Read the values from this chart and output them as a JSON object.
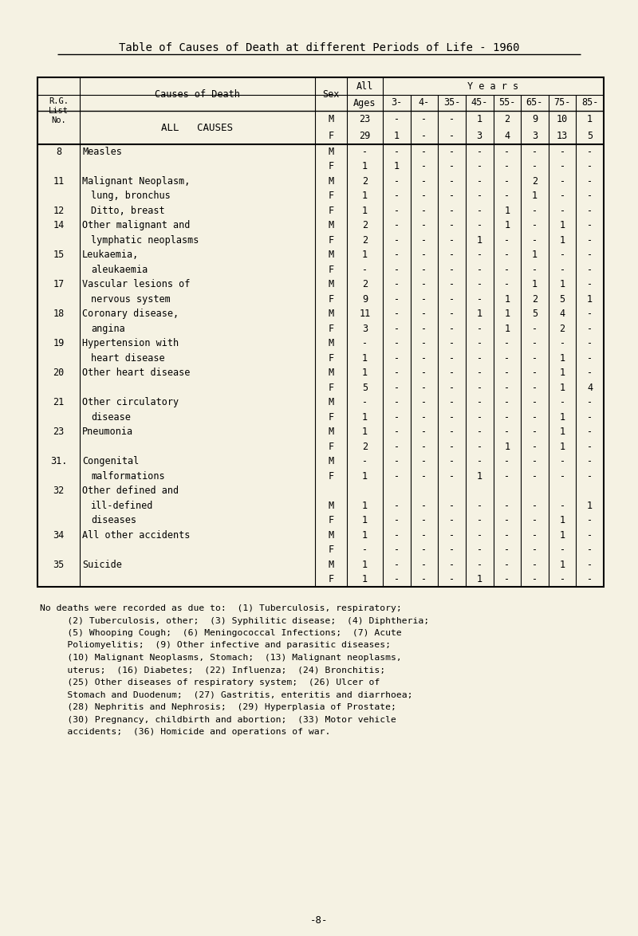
{
  "title": "Table of Causes of Death at different Periods of Life - 1960",
  "bg_color": "#f5f2e3",
  "age_labels": [
    "3-",
    "4-",
    "35-",
    "45-",
    "55-",
    "65-",
    "75-",
    "85-"
  ],
  "rows": [
    {
      "num": "",
      "cause": "ALL CAUSES",
      "sex": "M",
      "all": "23",
      "c3": "-",
      "c4": "-",
      "c35": "-",
      "c45": "1",
      "c55": "2",
      "c65": "9",
      "c75": "10",
      "c85": "1"
    },
    {
      "num": "",
      "cause": "",
      "sex": "F",
      "all": "29",
      "c3": "1",
      "c4": "-",
      "c35": "-",
      "c45": "3",
      "c55": "4",
      "c65": "3",
      "c75": "13",
      "c85": "5"
    },
    {
      "num": "8",
      "cause": "Measles",
      "sex": "M",
      "all": "-",
      "c3": "-",
      "c4": "-",
      "c35": "-",
      "c45": "-",
      "c55": "-",
      "c65": "-",
      "c75": "-",
      "c85": "-"
    },
    {
      "num": "",
      "cause": "",
      "sex": "F",
      "all": "1",
      "c3": "1",
      "c4": "-",
      "c35": "-",
      "c45": "-",
      "c55": "-",
      "c65": "-",
      "c75": "-",
      "c85": "-"
    },
    {
      "num": "11",
      "cause": "Malignant Neoplasm,",
      "sex": "M",
      "all": "2",
      "c3": "-",
      "c4": "-",
      "c35": "-",
      "c45": "-",
      "c55": "-",
      "c65": "2",
      "c75": "-",
      "c85": "-"
    },
    {
      "num": "",
      "cause": "    lung, bronchus",
      "sex": "F",
      "all": "1",
      "c3": "-",
      "c4": "-",
      "c35": "-",
      "c45": "-",
      "c55": "-",
      "c65": "1",
      "c75": "-",
      "c85": "-"
    },
    {
      "num": "12",
      "cause": "    Ditto, breast",
      "sex": "F",
      "all": "1",
      "c3": "-",
      "c4": "-",
      "c35": "-",
      "c45": "-",
      "c55": "1",
      "c65": "-",
      "c75": "-",
      "c85": "-"
    },
    {
      "num": "14",
      "cause": "Other malignant and",
      "sex": "M",
      "all": "2",
      "c3": "-",
      "c4": "-",
      "c35": "-",
      "c45": "-",
      "c55": "1",
      "c65": "-",
      "c75": "1",
      "c85": "-"
    },
    {
      "num": "",
      "cause": "    lymphatic neoplasms",
      "sex": "F",
      "all": "2",
      "c3": "-",
      "c4": "-",
      "c35": "-",
      "c45": "1",
      "c55": "-",
      "c65": "-",
      "c75": "1",
      "c85": "-"
    },
    {
      "num": "15",
      "cause": "Leukaemia,",
      "sex": "M",
      "all": "1",
      "c3": "-",
      "c4": "-",
      "c35": "-",
      "c45": "-",
      "c55": "-",
      "c65": "1",
      "c75": "-",
      "c85": "-"
    },
    {
      "num": "",
      "cause": "    aleukaemia",
      "sex": "F",
      "all": "-",
      "c3": "-",
      "c4": "-",
      "c35": "-",
      "c45": "-",
      "c55": "-",
      "c65": "-",
      "c75": "-",
      "c85": "-"
    },
    {
      "num": "17",
      "cause": "Vascular lesions of",
      "sex": "M",
      "all": "2",
      "c3": "-",
      "c4": "-",
      "c35": "-",
      "c45": "-",
      "c55": "-",
      "c65": "1",
      "c75": "1",
      "c85": "-"
    },
    {
      "num": "",
      "cause": "    nervous system",
      "sex": "F",
      "all": "9",
      "c3": "-",
      "c4": "-",
      "c35": "-",
      "c45": "-",
      "c55": "1",
      "c65": "2",
      "c75": "5",
      "c85": "1"
    },
    {
      "num": "18",
      "cause": "Coronary disease,",
      "sex": "M",
      "all": "11",
      "c3": "-",
      "c4": "-",
      "c35": "-",
      "c45": "1",
      "c55": "1",
      "c65": "5",
      "c75": "4",
      "c85": "-"
    },
    {
      "num": "",
      "cause": "    angina",
      "sex": "F",
      "all": "3",
      "c3": "-",
      "c4": "-",
      "c35": "-",
      "c45": "-",
      "c55": "1",
      "c65": "-",
      "c75": "2",
      "c85": "-"
    },
    {
      "num": "19",
      "cause": "Hypertension with",
      "sex": "M",
      "all": "-",
      "c3": "-",
      "c4": "-",
      "c35": "-",
      "c45": "-",
      "c55": "-",
      "c65": "-",
      "c75": "-",
      "c85": "-"
    },
    {
      "num": "",
      "cause": "    heart disease",
      "sex": "F",
      "all": "1",
      "c3": "-",
      "c4": "-",
      "c35": "-",
      "c45": "-",
      "c55": "-",
      "c65": "-",
      "c75": "1",
      "c85": "-"
    },
    {
      "num": "20",
      "cause": "Other heart disease",
      "sex": "M",
      "all": "1",
      "c3": "-",
      "c4": "-",
      "c35": "-",
      "c45": "-",
      "c55": "-",
      "c65": "-",
      "c75": "1",
      "c85": "-"
    },
    {
      "num": "",
      "cause": "",
      "sex": "F",
      "all": "5",
      "c3": "-",
      "c4": "-",
      "c35": "-",
      "c45": "-",
      "c55": "-",
      "c65": "-",
      "c75": "1",
      "c85": "4"
    },
    {
      "num": "21",
      "cause": "Other circulatory",
      "sex": "M",
      "all": "-",
      "c3": "-",
      "c4": "-",
      "c35": "-",
      "c45": "-",
      "c55": "-",
      "c65": "-",
      "c75": "-",
      "c85": "-"
    },
    {
      "num": "",
      "cause": "    disease",
      "sex": "F",
      "all": "1",
      "c3": "-",
      "c4": "-",
      "c35": "-",
      "c45": "-",
      "c55": "-",
      "c65": "-",
      "c75": "1",
      "c85": "-"
    },
    {
      "num": "23",
      "cause": "Pneumonia",
      "sex": "M",
      "all": "1",
      "c3": "-",
      "c4": "-",
      "c35": "-",
      "c45": "-",
      "c55": "-",
      "c65": "-",
      "c75": "1",
      "c85": "-"
    },
    {
      "num": "",
      "cause": "",
      "sex": "F",
      "all": "2",
      "c3": "-",
      "c4": "-",
      "c35": "-",
      "c45": "-",
      "c55": "1",
      "c65": "-",
      "c75": "1",
      "c85": "-"
    },
    {
      "num": "31.",
      "cause": "Congenital",
      "sex": "M",
      "all": "-",
      "c3": "-",
      "c4": "-",
      "c35": "-",
      "c45": "-",
      "c55": "-",
      "c65": "-",
      "c75": "-",
      "c85": "-"
    },
    {
      "num": "",
      "cause": "    malformations",
      "sex": "F",
      "all": "1",
      "c3": "-",
      "c4": "-",
      "c35": "-",
      "c45": "1",
      "c55": "-",
      "c65": "-",
      "c75": "-",
      "c85": "-"
    },
    {
      "num": "32",
      "cause": "Other defined and",
      "sex": "",
      "all": "",
      "c3": "",
      "c4": "",
      "c35": "",
      "c45": "",
      "c55": "",
      "c65": "",
      "c75": "",
      "c85": ""
    },
    {
      "num": "",
      "cause": "    ill-defined",
      "sex": "M",
      "all": "1",
      "c3": "-",
      "c4": "-",
      "c35": "-",
      "c45": "-",
      "c55": "-",
      "c65": "-",
      "c75": "-",
      "c85": "1"
    },
    {
      "num": "",
      "cause": "    diseases",
      "sex": "F",
      "all": "1",
      "c3": "-",
      "c4": "-",
      "c35": "-",
      "c45": "-",
      "c55": "-",
      "c65": "-",
      "c75": "1",
      "c85": "-"
    },
    {
      "num": "34",
      "cause": "All other accidents",
      "sex": "M",
      "all": "1",
      "c3": "-",
      "c4": "-",
      "c35": "-",
      "c45": "-",
      "c55": "-",
      "c65": "-",
      "c75": "1",
      "c85": "-"
    },
    {
      "num": "",
      "cause": "",
      "sex": "F",
      "all": "-",
      "c3": "-",
      "c4": "-",
      "c35": "-",
      "c45": "-",
      "c55": "-",
      "c65": "-",
      "c75": "-",
      "c85": "-"
    },
    {
      "num": "35",
      "cause": "Suicide",
      "sex": "M",
      "all": "1",
      "c3": "-",
      "c4": "-",
      "c35": "-",
      "c45": "-",
      "c55": "-",
      "c65": "-",
      "c75": "1",
      "c85": "-"
    },
    {
      "num": "",
      "cause": "",
      "sex": "F",
      "all": "1",
      "c3": "-",
      "c4": "-",
      "c35": "-",
      "c45": "1",
      "c55": "-",
      "c65": "-",
      "c75": "-",
      "c85": "-"
    }
  ],
  "footnote_lines": [
    "No deaths were recorded as due to:  (1) Tuberculosis, respiratory;",
    "     (2) Tuberculosis, other;  (3) Syphilitic disease;  (4) Diphtheria;",
    "     (5) Whooping Cough;  (6) Meningococcal Infections;  (7) Acute",
    "     Poliomyelitis;  (9) Other infective and parasitic diseases;",
    "     (10) Malignant Neoplasms, Stomach;  (13) Malignant neoplasms,",
    "     uterus;  (16) Diabetes;  (22) Influenza;  (24) Bronchitis;",
    "     (25) Other diseases of respiratory system;  (26) Ulcer of",
    "     Stomach and Duodenum;  (27) Gastritis, enteritis and diarrhoea;",
    "     (28) Nephritis and Nephrosis;  (29) Hyperplasia of Prostate;",
    "     (30) Pregnancy, childbirth and abortion;  (33) Motor vehicle",
    "     accidents;  (36) Homicide and operations of war."
  ],
  "page_num": "-8-"
}
